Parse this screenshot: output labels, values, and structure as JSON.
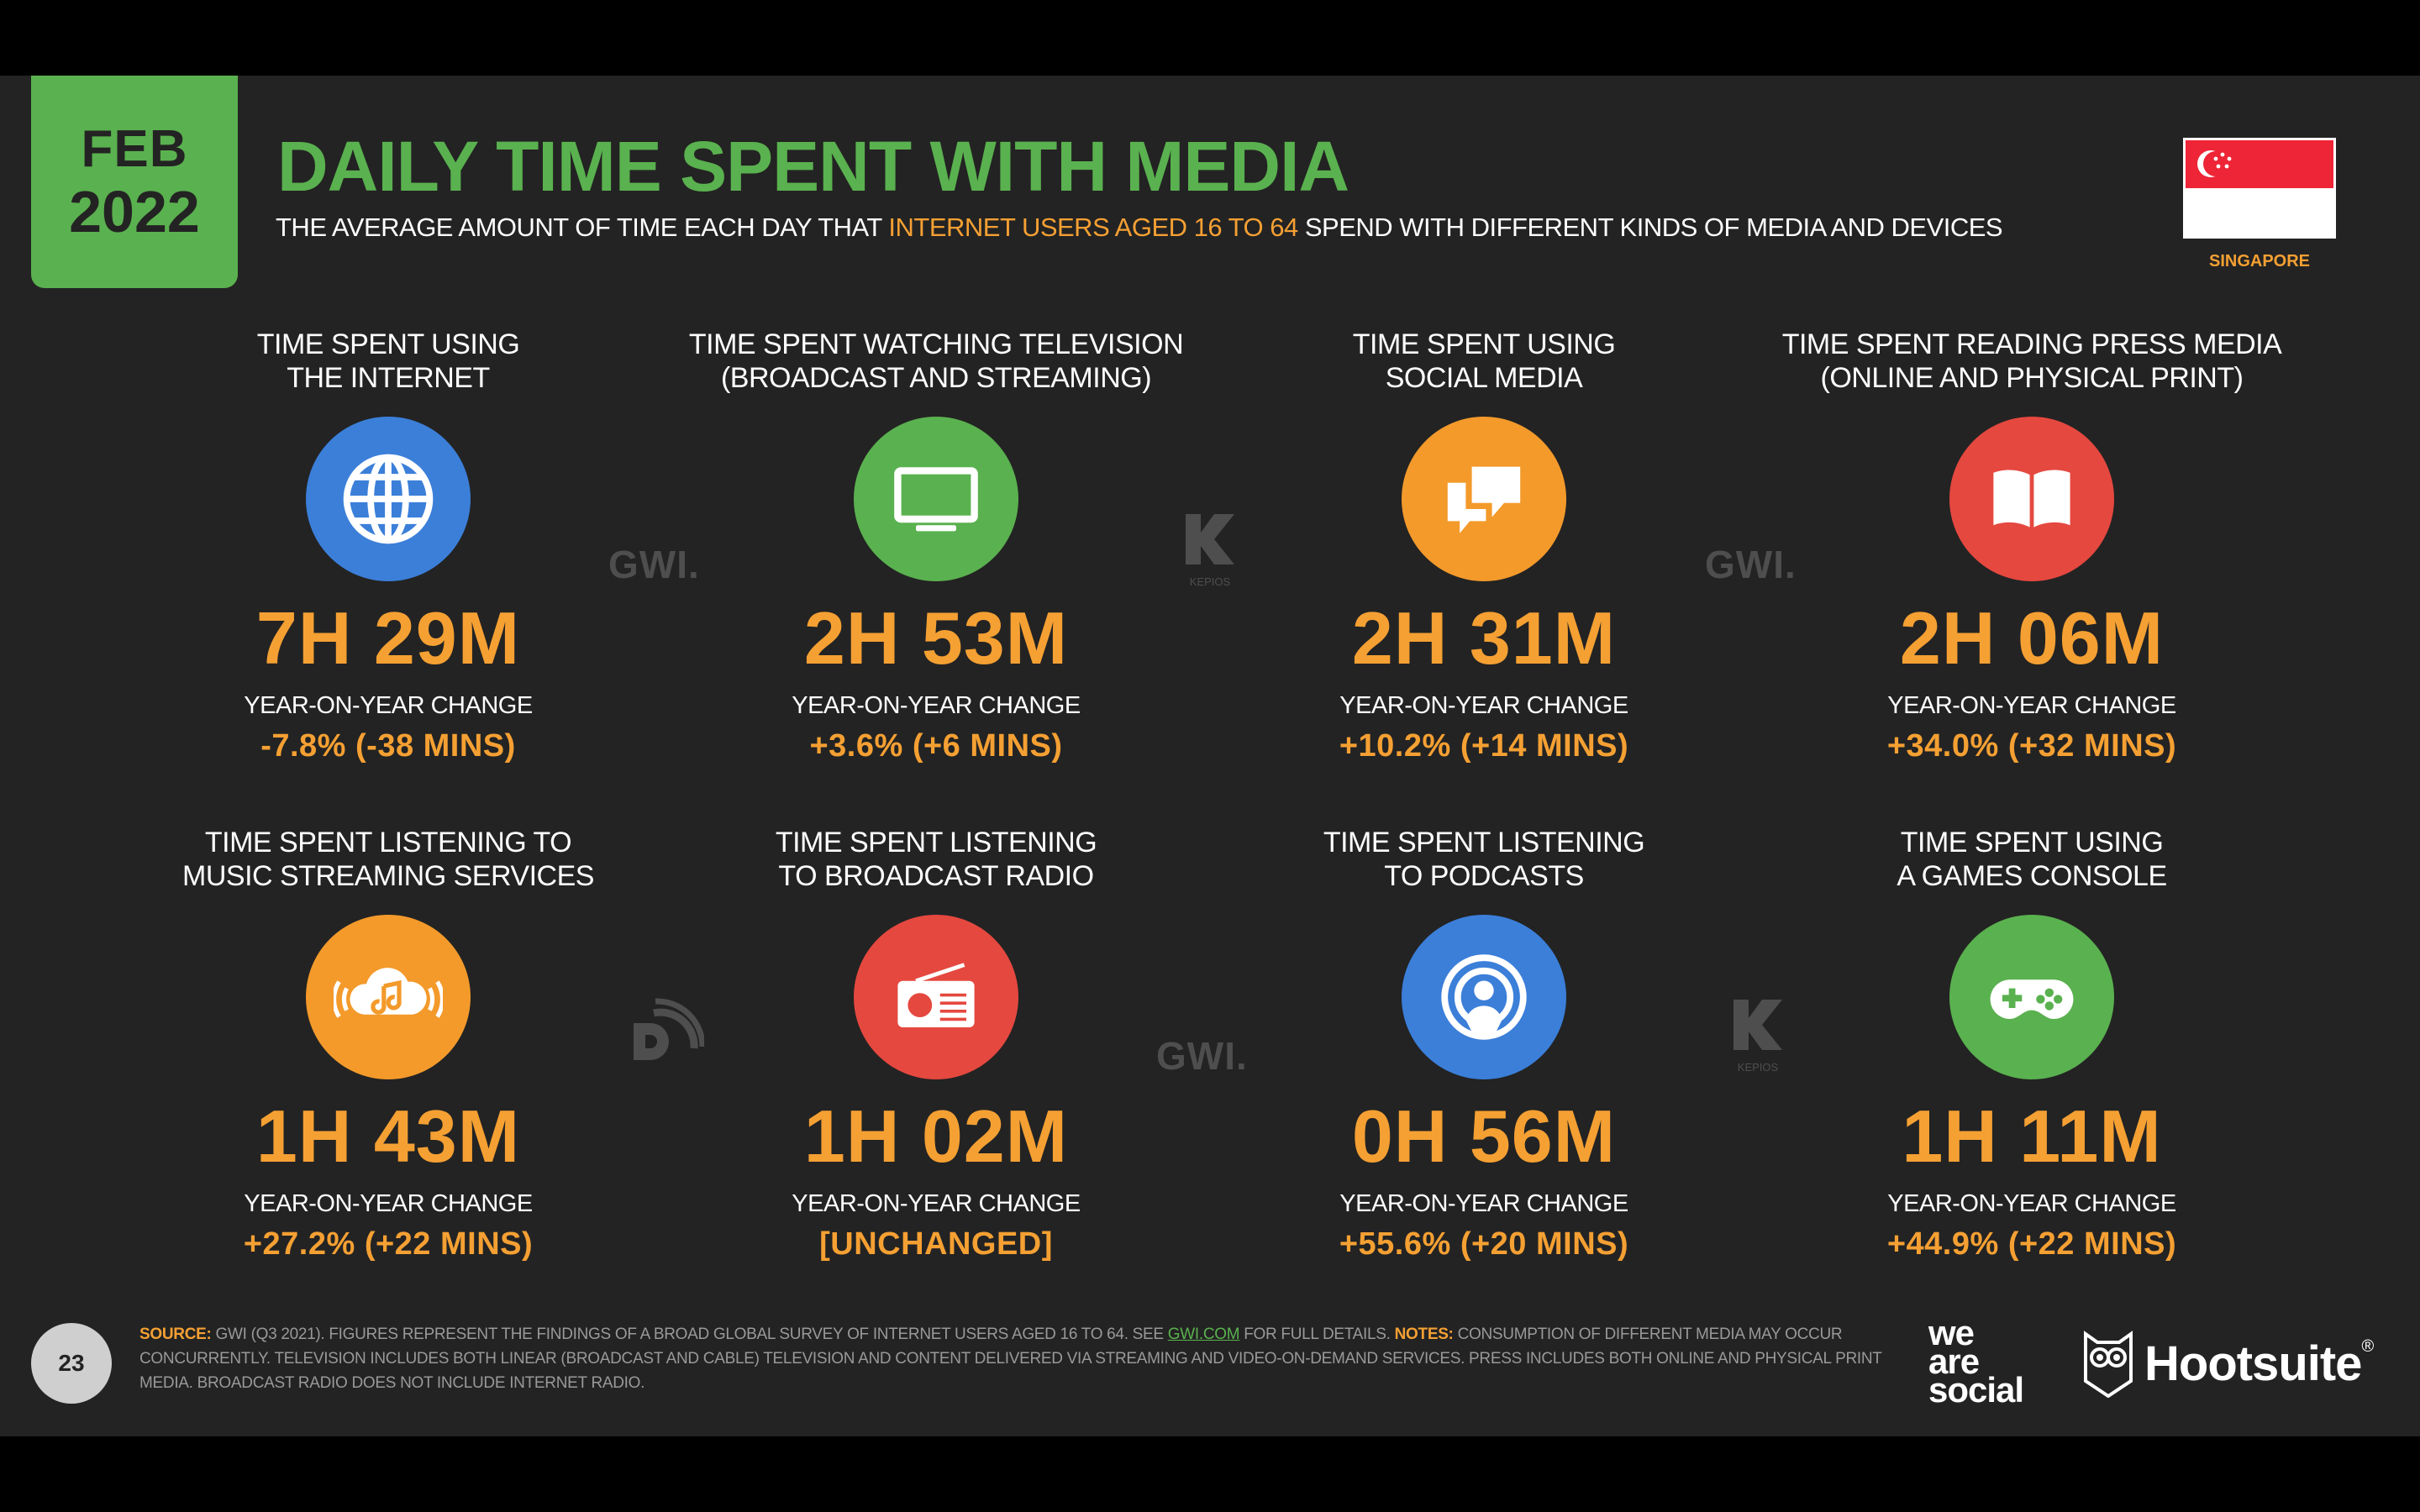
{
  "header": {
    "month": "FEB",
    "year": "2022",
    "title": "DAILY TIME SPENT WITH MEDIA",
    "subtitle_before": "THE AVERAGE AMOUNT OF TIME EACH DAY THAT ",
    "subtitle_highlight": "INTERNET USERS AGED 16 TO 64",
    "subtitle_after": " SPEND WITH DIFFERENT KINDS OF MEDIA AND DEVICES",
    "country": "SINGAPORE"
  },
  "stats": [
    {
      "label1": "TIME SPENT USING",
      "label2": "THE INTERNET",
      "value": "7H 29M",
      "yoy_label": "YEAR-ON-YEAR CHANGE",
      "yoy": "-7.8% (-38 MINS)",
      "icon": "globe-icon",
      "color": "#3b7fd9"
    },
    {
      "label1": "TIME SPENT WATCHING TELEVISION",
      "label2": "(BROADCAST AND STREAMING)",
      "value": "2H 53M",
      "yoy_label": "YEAR-ON-YEAR CHANGE",
      "yoy": "+3.6% (+6 MINS)",
      "icon": "television-icon",
      "color": "#5ab14f"
    },
    {
      "label1": "TIME SPENT USING",
      "label2": "SOCIAL MEDIA",
      "value": "2H 31M",
      "yoy_label": "YEAR-ON-YEAR CHANGE",
      "yoy": "+10.2% (+14 MINS)",
      "icon": "chat-bubbles-icon",
      "color": "#f39a2b"
    },
    {
      "label1": "TIME SPENT READING PRESS MEDIA",
      "label2": "(ONLINE AND PHYSICAL PRINT)",
      "value": "2H 06M",
      "yoy_label": "YEAR-ON-YEAR CHANGE",
      "yoy": "+34.0% (+32 MINS)",
      "icon": "open-book-icon",
      "color": "#e5483f"
    },
    {
      "label1": "TIME SPENT LISTENING TO",
      "label2": "MUSIC STREAMING SERVICES",
      "value": "1H 43M",
      "yoy_label": "YEAR-ON-YEAR CHANGE",
      "yoy": "+27.2% (+22 MINS)",
      "icon": "music-cloud-icon",
      "color": "#f39a2b"
    },
    {
      "label1": "TIME SPENT LISTENING",
      "label2": "TO BROADCAST RADIO",
      "value": "1H 02M",
      "yoy_label": "YEAR-ON-YEAR CHANGE",
      "yoy": "[UNCHANGED]",
      "icon": "radio-icon",
      "color": "#e5483f"
    },
    {
      "label1": "TIME SPENT LISTENING",
      "label2": "TO PODCASTS",
      "value": "0H 56M",
      "yoy_label": "YEAR-ON-YEAR CHANGE",
      "yoy": "+55.6% (+20 MINS)",
      "icon": "podcast-icon",
      "color": "#3b7fd9"
    },
    {
      "label1": "TIME SPENT USING",
      "label2": "A GAMES CONSOLE",
      "value": "1H 11M",
      "yoy_label": "YEAR-ON-YEAR CHANGE",
      "yoy": "+44.9% (+22 MINS)",
      "icon": "gamepad-icon",
      "color": "#5ab14f"
    }
  ],
  "watermarks": {
    "gwi": "GWI.",
    "kepios": "KEPIOS"
  },
  "footer": {
    "page_number": "23",
    "source_key": "SOURCE:",
    "source_text_1": " GWI (Q3 2021). FIGURES REPRESENT THE FINDINGS OF A BROAD GLOBAL SURVEY OF INTERNET USERS AGED 16 TO 64. SEE ",
    "source_link": "GWI.COM",
    "source_text_2": " FOR FULL DETAILS. ",
    "notes_key": "NOTES:",
    "notes_text": " CONSUMPTION OF DIFFERENT MEDIA MAY OCCUR CONCURRENTLY. TELEVISION INCLUDES BOTH LINEAR (BROADCAST AND CABLE) TELEVISION AND CONTENT DELIVERED VIA STREAMING AND VIDEO-ON-DEMAND SERVICES. PRESS INCLUDES BOTH ONLINE AND PHYSICAL PRINT MEDIA. BROADCAST RADIO DOES NOT INCLUDE INTERNET RADIO.",
    "brand1_line1": "we",
    "brand1_line2": "are",
    "brand1_line3": "social",
    "brand2": "Hootsuite",
    "brand2_mark": "®"
  }
}
